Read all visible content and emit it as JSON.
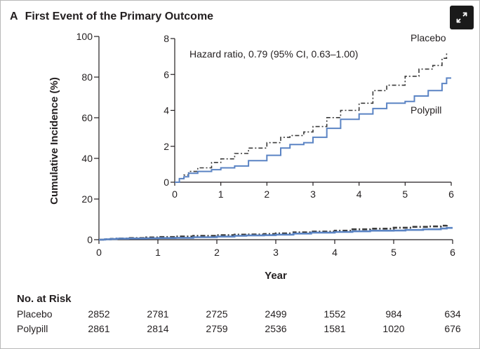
{
  "panel": {
    "letter": "A",
    "title": "First Event of the Primary Outcome"
  },
  "expand_icon": "expand-arrows-icon",
  "colors": {
    "placebo": "#3a3a3a",
    "polypill": "#5b84c4",
    "axis": "#231f20",
    "expand_button_bg": "#1a1a1a"
  },
  "chart_data": {
    "type": "line",
    "xlabel": "Year",
    "ylabel": "Cumulative Incidence (%)",
    "xlim": [
      0,
      6
    ],
    "ylim": [
      0,
      100
    ],
    "x_ticks": [
      0,
      1,
      2,
      3,
      4,
      5,
      6
    ],
    "y_ticks": [
      0,
      20,
      40,
      60,
      80,
      100
    ],
    "series": [
      {
        "name": "Placebo",
        "style": "dash-dot",
        "x": [
          0,
          0.1,
          0.2,
          0.3,
          0.5,
          0.8,
          1.0,
          1.3,
          1.6,
          2.0,
          2.3,
          2.5,
          2.8,
          3.0,
          3.3,
          3.6,
          4.0,
          4.3,
          4.6,
          5.0,
          5.3,
          5.6,
          5.8,
          5.9
        ],
        "y": [
          0,
          0.2,
          0.4,
          0.6,
          0.8,
          1.1,
          1.3,
          1.6,
          1.9,
          2.2,
          2.5,
          2.6,
          2.8,
          3.1,
          3.6,
          4.0,
          4.4,
          5.1,
          5.4,
          5.9,
          6.3,
          6.5,
          6.9,
          7.2
        ]
      },
      {
        "name": "Polypill",
        "style": "solid",
        "x": [
          0,
          0.1,
          0.2,
          0.3,
          0.5,
          0.8,
          1.0,
          1.3,
          1.6,
          2.0,
          2.3,
          2.5,
          2.8,
          3.0,
          3.3,
          3.6,
          4.0,
          4.3,
          4.6,
          5.0,
          5.2,
          5.5,
          5.8,
          5.9,
          6.0
        ],
        "y": [
          0,
          0.2,
          0.3,
          0.5,
          0.6,
          0.7,
          0.8,
          0.9,
          1.2,
          1.5,
          1.9,
          2.1,
          2.2,
          2.5,
          3.0,
          3.5,
          3.8,
          4.1,
          4.4,
          4.5,
          4.8,
          5.1,
          5.5,
          5.8,
          5.8
        ]
      }
    ],
    "inset": {
      "xlim": [
        0,
        6
      ],
      "ylim": [
        0,
        8
      ],
      "x_ticks": [
        0,
        1,
        2,
        3,
        4,
        5,
        6
      ],
      "y_ticks": [
        0,
        2,
        4,
        6,
        8
      ],
      "annotation": "Hazard ratio, 0.79 (95% CI, 0.63–1.00)",
      "labels": {
        "placebo": "Placebo",
        "polypill": "Polypill"
      }
    },
    "at_risk": {
      "title": "No. at Risk",
      "rows": [
        {
          "group": "Placebo",
          "values": [
            2852,
            2781,
            2725,
            2499,
            1552,
            984,
            634
          ]
        },
        {
          "group": "Polypill",
          "values": [
            2861,
            2814,
            2759,
            2536,
            1581,
            1020,
            676
          ]
        }
      ]
    }
  }
}
